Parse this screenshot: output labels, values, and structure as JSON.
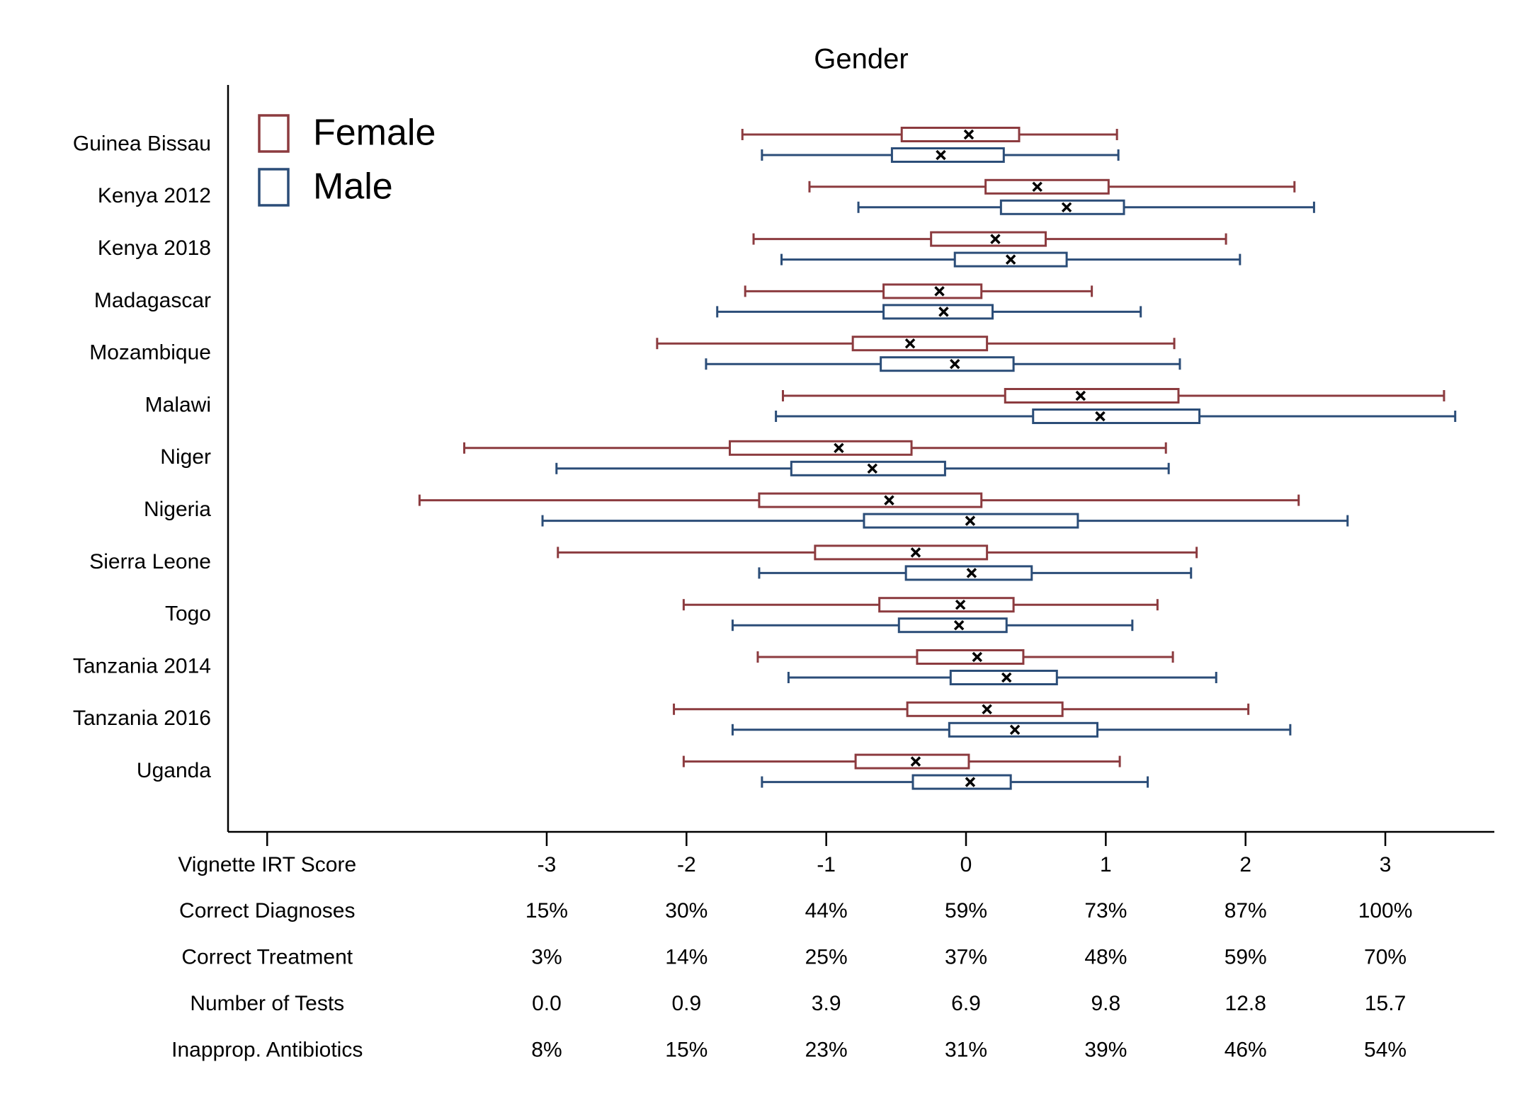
{
  "chart_data": {
    "type": "boxplot",
    "title": "Gender",
    "categories": [
      "Guinea Bissau",
      "Kenya 2012",
      "Kenya 2018",
      "Madagascar",
      "Mozambique",
      "Malawi",
      "Niger",
      "Nigeria",
      "Sierra Leone",
      "Togo",
      "Tanzania 2014",
      "Tanzania 2016",
      "Uganda"
    ],
    "series": [
      {
        "name": "Female",
        "color": "#8c3b3f",
        "min": [
          -1.6,
          -1.12,
          -1.52,
          -1.58,
          -2.21,
          -1.31,
          -3.59,
          -3.91,
          -2.92,
          -2.02,
          -1.49,
          -2.09,
          -2.02
        ],
        "q1": [
          -0.46,
          0.14,
          -0.25,
          -0.59,
          -0.81,
          0.28,
          -1.69,
          -1.48,
          -1.08,
          -0.62,
          -0.35,
          -0.42,
          -0.79
        ],
        "mean": [
          0.02,
          0.51,
          0.21,
          -0.19,
          -0.4,
          0.82,
          -0.91,
          -0.55,
          -0.36,
          -0.04,
          0.08,
          0.15,
          -0.36
        ],
        "q3": [
          0.38,
          1.02,
          0.57,
          0.11,
          0.15,
          1.52,
          -0.39,
          0.11,
          0.15,
          0.34,
          0.41,
          0.69,
          0.02
        ],
        "max": [
          1.08,
          2.35,
          1.86,
          0.9,
          1.49,
          3.42,
          1.43,
          2.38,
          1.65,
          1.37,
          1.48,
          2.02,
          1.1
        ]
      },
      {
        "name": "Male",
        "color": "#2b4d78",
        "min": [
          -1.46,
          -0.77,
          -1.32,
          -1.78,
          -1.86,
          -1.36,
          -2.93,
          -3.03,
          -1.48,
          -1.67,
          -1.27,
          -1.67,
          -1.46
        ],
        "q1": [
          -0.53,
          0.25,
          -0.08,
          -0.59,
          -0.61,
          0.48,
          -1.25,
          -0.73,
          -0.43,
          -0.48,
          -0.11,
          -0.12,
          -0.38
        ],
        "mean": [
          -0.18,
          0.72,
          0.32,
          -0.16,
          -0.08,
          0.96,
          -0.67,
          0.03,
          0.04,
          -0.05,
          0.29,
          0.35,
          0.03
        ],
        "q3": [
          0.27,
          1.13,
          0.72,
          0.19,
          0.34,
          1.67,
          -0.15,
          0.8,
          0.47,
          0.29,
          0.65,
          0.94,
          0.32
        ],
        "max": [
          1.09,
          2.49,
          1.96,
          1.25,
          1.53,
          3.5,
          1.45,
          2.73,
          1.61,
          1.19,
          1.79,
          2.32,
          1.3
        ]
      }
    ],
    "xlim": [
      -5.28,
      3.78
    ],
    "xticks": [
      {
        "value": -5,
        "label": "Vignette IRT Score"
      },
      -3,
      -2,
      -1,
      0,
      1,
      2,
      3
    ],
    "table_rows": [
      {
        "label": "Correct Diagnoses",
        "values": [
          "15%",
          "30%",
          "44%",
          "59%",
          "73%",
          "87%",
          "100%"
        ]
      },
      {
        "label": "Correct Treatment",
        "values": [
          "3%",
          "14%",
          "25%",
          "37%",
          "48%",
          "59%",
          "70%"
        ]
      },
      {
        "label": "Number of Tests",
        "values": [
          "0.0",
          "0.9",
          "3.9",
          "6.9",
          "9.8",
          "12.8",
          "15.7"
        ]
      },
      {
        "label": "Inapprop. Antibiotics",
        "values": [
          "8%",
          "15%",
          "23%",
          "31%",
          "39%",
          "46%",
          "54%"
        ]
      }
    ],
    "legend": "top-left"
  }
}
